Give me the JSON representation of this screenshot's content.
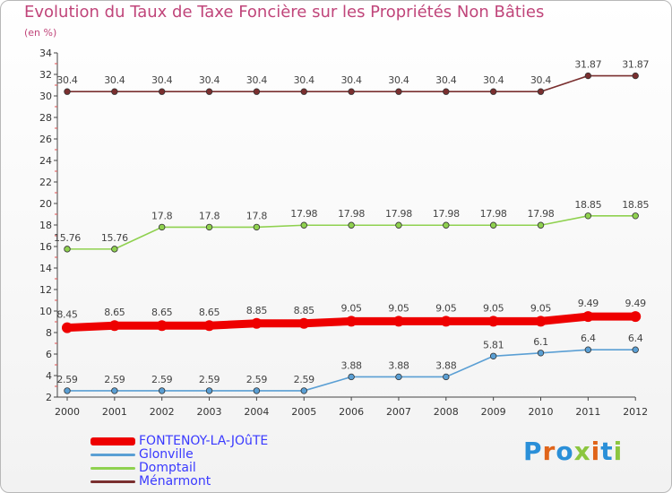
{
  "chart_data": {
    "type": "line",
    "title": "Evolution du Taux de Taxe Foncière sur les Propriétés Non Bâties",
    "unit_label": "(en %)",
    "x": [
      "2000",
      "2001",
      "2002",
      "2003",
      "2004",
      "2005",
      "2006",
      "2007",
      "2008",
      "2009",
      "2010",
      "2011",
      "2012"
    ],
    "ylim": [
      2,
      34
    ],
    "yticks": [
      2,
      4,
      6,
      8,
      10,
      12,
      14,
      16,
      18,
      20,
      22,
      24,
      26,
      28,
      30,
      32,
      34
    ],
    "series": [
      {
        "name": "Ménarmont",
        "color": "#7a2f2f",
        "values": [
          30.4,
          30.4,
          30.4,
          30.4,
          30.4,
          30.4,
          30.4,
          30.4,
          30.4,
          30.4,
          30.4,
          31.87,
          31.87
        ],
        "labels": [
          "30.4",
          "30.4",
          "30.4",
          "30.4",
          "30.4",
          "30.4",
          "30.4",
          "30.4",
          "30.4",
          "30.4",
          "30.4",
          "31.87",
          "31.87"
        ]
      },
      {
        "name": "Domptail",
        "color": "#8fd14f",
        "values": [
          15.76,
          15.76,
          17.8,
          17.8,
          17.8,
          17.98,
          17.98,
          17.98,
          17.98,
          17.98,
          17.98,
          18.85,
          18.85
        ],
        "labels": [
          "15.76",
          "15.76",
          "17.8",
          "17.8",
          "17.8",
          "17.98",
          "17.98",
          "17.98",
          "17.98",
          "17.98",
          "17.98",
          "18.85",
          "18.85"
        ]
      },
      {
        "name": "FONTENOY-LA-JOûTE",
        "color": "#ee0000",
        "values": [
          8.45,
          8.65,
          8.65,
          8.65,
          8.85,
          8.85,
          9.05,
          9.05,
          9.05,
          9.05,
          9.05,
          9.49,
          9.49
        ],
        "labels": [
          "8.45",
          "8.65",
          "8.65",
          "8.65",
          "8.85",
          "8.85",
          "9.05",
          "9.05",
          "9.05",
          "9.05",
          "9.05",
          "9.49",
          "9.49"
        ]
      },
      {
        "name": "Glonville",
        "color": "#5a9fd4",
        "values": [
          2.59,
          2.59,
          2.59,
          2.59,
          2.59,
          2.59,
          3.88,
          3.88,
          3.88,
          5.81,
          6.1,
          6.4,
          6.4
        ],
        "labels": [
          "2.59",
          "2.59",
          "2.59",
          "2.59",
          "2.59",
          "2.59",
          "3.88",
          "3.88",
          "3.88",
          "5.81",
          "6.1",
          "6.4",
          "6.4"
        ]
      }
    ],
    "legend": [
      {
        "name": "FONTENOY-LA-JOûTE",
        "color": "#ee0000"
      },
      {
        "name": "Glonville",
        "color": "#5a9fd4"
      },
      {
        "name": "Domptail",
        "color": "#8fd14f"
      },
      {
        "name": "Ménarmont",
        "color": "#7a2f2f"
      }
    ],
    "legend_position": "bottom-left",
    "grid": false
  },
  "brand": {
    "text": "Proxiti",
    "colors": [
      "#2a8fd8",
      "#e0641a",
      "#2a8fd8",
      "#8cc63f",
      "#e0641a",
      "#2a8fd8",
      "#8cc63f"
    ]
  }
}
